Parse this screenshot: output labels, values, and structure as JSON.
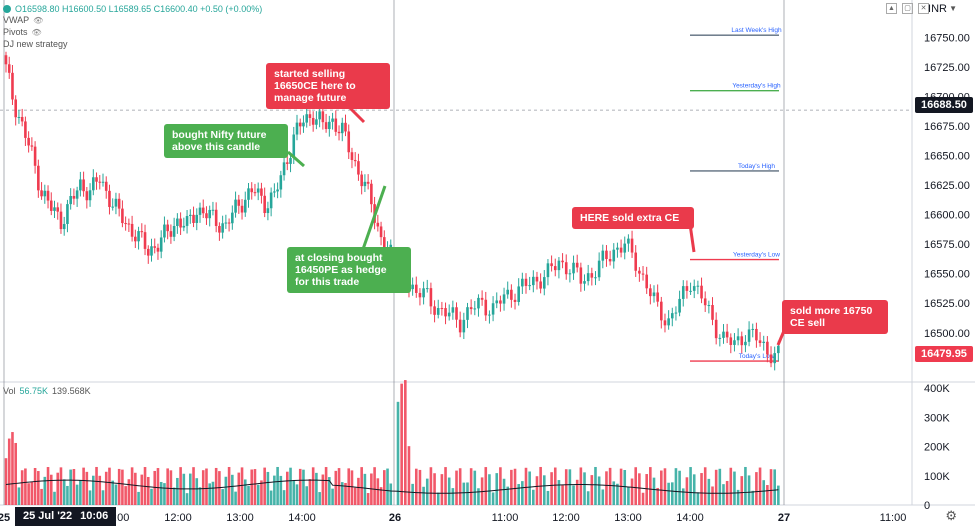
{
  "header": {
    "ohlc": "O16598.80 H16600.50 L16589.65 C16600.40 +0.50 (+0.00%)",
    "vwap": "VWAP",
    "pivots": "Pivots",
    "strategy": "DJ new strategy",
    "currency": "INR",
    "icons": [
      "chevron-up-icon",
      "maximize-icon",
      "close-icon"
    ]
  },
  "volume_legend": {
    "label": "Vol",
    "value": "56.75K",
    "ma": "139.568K"
  },
  "price_tags": {
    "crosshair": "16688.50",
    "last": "16479.95"
  },
  "date_badge": {
    "date": "25 Jul '22",
    "time": "10:06"
  },
  "callouts": {
    "sell_650ce": "started selling 16650CE here to manage future",
    "bought_future": "bought Nifty future above this candle",
    "sold_extra_ce": "HERE sold extra CE",
    "hedge_pe": "at closing bought 16450PE as hedge for this trade",
    "sold_750ce": "sold more 16750 CE sell"
  },
  "chart_data": {
    "type": "candlestick",
    "symbol": "",
    "ylim": [
      16460,
      16775
    ],
    "y_ticks": [
      16500,
      16525,
      16550,
      16575,
      16600,
      16625,
      16650,
      16675,
      16700,
      16725,
      16750
    ],
    "x_tick_labels": [
      "25",
      "11:00",
      "12:00",
      "13:00",
      "14:00",
      "26",
      "11:00",
      "12:00",
      "13:00",
      "14:00",
      "27",
      "11:00"
    ],
    "close_series": [
      {
        "session": "25",
        "values": [
          16735,
          16700,
          16675,
          16650,
          16620,
          16605,
          16595,
          16610,
          16625,
          16620,
          16630,
          16615,
          16600,
          16590,
          16580,
          16570,
          16575,
          16585,
          16595,
          16590,
          16605,
          16600,
          16595,
          16590,
          16605,
          16615,
          16620,
          16610,
          16615,
          16640,
          16665,
          16680,
          16685,
          16675,
          16680,
          16670,
          16650,
          16630,
          16610,
          16580,
          16565
        ]
      },
      {
        "session": "26",
        "values": [
          16555,
          16545,
          16535,
          16530,
          16520,
          16515,
          16510,
          16520,
          16525,
          16520,
          16530,
          16535,
          16540,
          16545,
          16550,
          16560,
          16555,
          16545,
          16550,
          16560,
          16570,
          16575,
          16560,
          16540,
          16520,
          16510,
          16525,
          16545,
          16530,
          16510,
          16495,
          16490,
          16500,
          16495,
          16485,
          16480
        ]
      }
    ],
    "horizontal_levels": [
      {
        "label": "Last Week's High",
        "value": 16752,
        "color": "#5d6d7e"
      },
      {
        "label": "Yesterday's High",
        "value": 16705,
        "color": "#4caf50"
      },
      {
        "label": "Today's High",
        "value": 16637,
        "color": "#5d6d7e"
      },
      {
        "label": "Yesterday's Low",
        "value": 16562,
        "color": "#ef3b4f"
      },
      {
        "label": "Today's Low",
        "value": 16476,
        "color": "#ef3b4f"
      }
    ],
    "volume_axis": {
      "ticks": [
        "400K",
        "300K",
        "200K",
        "100K",
        "0"
      ],
      "max": 400000
    },
    "colors": {
      "up": "#26a69a",
      "down": "#ef3b4f",
      "ma": "#131722",
      "level_text": "#2962ff"
    }
  }
}
